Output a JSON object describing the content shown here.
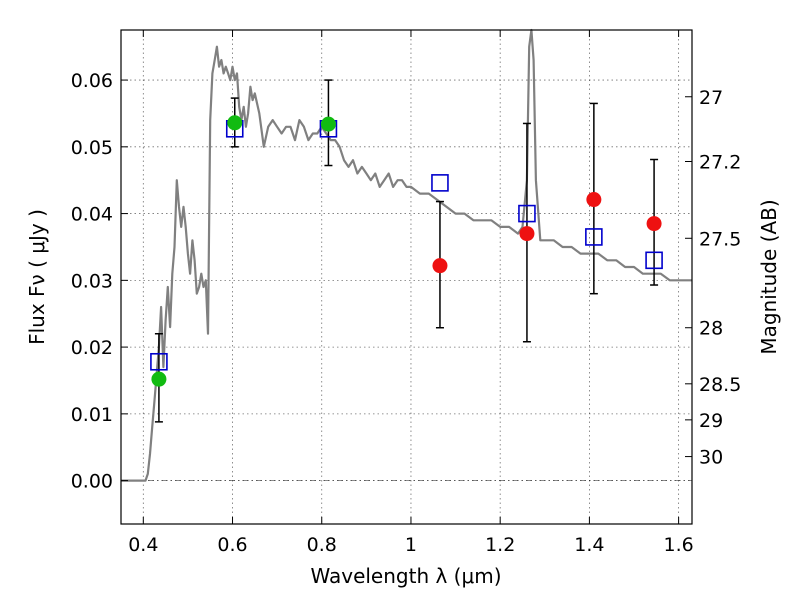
{
  "chart_data": {
    "type": "scatter",
    "title": "",
    "xlabel": "Wavelength  λ (μm)",
    "ylabel": "Flux  Fν  ( μJy )",
    "ylabel_right": "Magnitude (AB)",
    "xlim": [
      0.35,
      1.63
    ],
    "ylim": [
      -0.0065,
      0.0675
    ],
    "grid": true,
    "x_ticks": [
      0.4,
      0.6,
      0.8,
      1.0,
      1.2,
      1.4,
      1.6
    ],
    "x_tick_labels": [
      "0.4",
      "0.6",
      "0.8",
      "1",
      "1.2",
      "1.4",
      "1.6"
    ],
    "y_ticks": [
      0.0,
      0.01,
      0.02,
      0.03,
      0.04,
      0.05,
      0.06
    ],
    "y_tick_labels": [
      "0.00",
      "0.01",
      "0.02",
      "0.03",
      "0.04",
      "0.05",
      "0.06"
    ],
    "right_ticks": [
      {
        "label": "27",
        "flux": 0.0575
      },
      {
        "label": "27.2",
        "flux": 0.0478
      },
      {
        "label": "27.5",
        "flux": 0.0363
      },
      {
        "label": "28",
        "flux": 0.0229
      },
      {
        "label": "28.5",
        "flux": 0.0145
      },
      {
        "label": "29",
        "flux": 0.0091
      },
      {
        "label": "30",
        "flux": 0.0036
      }
    ],
    "model_spectrum": {
      "color": "#808080",
      "x": [
        0.35,
        0.4,
        0.405,
        0.41,
        0.415,
        0.42,
        0.425,
        0.43,
        0.435,
        0.44,
        0.445,
        0.45,
        0.455,
        0.46,
        0.465,
        0.47,
        0.475,
        0.48,
        0.485,
        0.49,
        0.495,
        0.5,
        0.505,
        0.51,
        0.515,
        0.52,
        0.525,
        0.53,
        0.535,
        0.54,
        0.545,
        0.55,
        0.555,
        0.56,
        0.565,
        0.57,
        0.575,
        0.58,
        0.585,
        0.59,
        0.595,
        0.6,
        0.605,
        0.61,
        0.615,
        0.62,
        0.625,
        0.63,
        0.635,
        0.64,
        0.645,
        0.65,
        0.66,
        0.67,
        0.68,
        0.69,
        0.7,
        0.71,
        0.72,
        0.73,
        0.74,
        0.75,
        0.76,
        0.77,
        0.78,
        0.79,
        0.8,
        0.81,
        0.82,
        0.83,
        0.84,
        0.85,
        0.86,
        0.87,
        0.88,
        0.89,
        0.9,
        0.91,
        0.92,
        0.93,
        0.94,
        0.95,
        0.96,
        0.97,
        0.98,
        0.99,
        1.0,
        1.02,
        1.04,
        1.06,
        1.08,
        1.1,
        1.12,
        1.14,
        1.16,
        1.18,
        1.2,
        1.22,
        1.24,
        1.25,
        1.26,
        1.265,
        1.27,
        1.275,
        1.28,
        1.29,
        1.3,
        1.32,
        1.34,
        1.36,
        1.38,
        1.4,
        1.42,
        1.44,
        1.46,
        1.48,
        1.5,
        1.52,
        1.54,
        1.56,
        1.58,
        1.6,
        1.63
      ],
      "y": [
        0.0,
        0.0,
        0.0,
        0.001,
        0.004,
        0.008,
        0.012,
        0.016,
        0.02,
        0.026,
        0.017,
        0.024,
        0.029,
        0.023,
        0.031,
        0.035,
        0.045,
        0.041,
        0.038,
        0.041,
        0.038,
        0.034,
        0.031,
        0.036,
        0.033,
        0.028,
        0.029,
        0.031,
        0.029,
        0.03,
        0.022,
        0.054,
        0.061,
        0.063,
        0.065,
        0.062,
        0.063,
        0.061,
        0.062,
        0.061,
        0.06,
        0.062,
        0.06,
        0.061,
        0.056,
        0.054,
        0.056,
        0.053,
        0.055,
        0.059,
        0.057,
        0.058,
        0.055,
        0.05,
        0.053,
        0.054,
        0.053,
        0.052,
        0.053,
        0.053,
        0.051,
        0.054,
        0.053,
        0.051,
        0.052,
        0.052,
        0.053,
        0.052,
        0.051,
        0.051,
        0.05,
        0.048,
        0.047,
        0.048,
        0.046,
        0.047,
        0.046,
        0.045,
        0.046,
        0.044,
        0.045,
        0.046,
        0.044,
        0.045,
        0.045,
        0.044,
        0.044,
        0.043,
        0.043,
        0.042,
        0.041,
        0.04,
        0.04,
        0.039,
        0.039,
        0.039,
        0.038,
        0.038,
        0.037,
        0.038,
        0.045,
        0.065,
        0.068,
        0.063,
        0.045,
        0.036,
        0.036,
        0.036,
        0.035,
        0.035,
        0.034,
        0.034,
        0.034,
        0.033,
        0.033,
        0.032,
        0.032,
        0.031,
        0.031,
        0.031,
        0.03,
        0.03,
        0.03
      ]
    },
    "series": [
      {
        "marker": "open-square",
        "color": "#0000cc",
        "points": [
          {
            "x": 0.435,
            "y": 0.0178
          },
          {
            "x": 0.605,
            "y": 0.0527
          },
          {
            "x": 0.815,
            "y": 0.0527
          },
          {
            "x": 1.065,
            "y": 0.0446
          },
          {
            "x": 1.26,
            "y": 0.04
          },
          {
            "x": 1.41,
            "y": 0.0365
          },
          {
            "x": 1.545,
            "y": 0.033
          }
        ]
      },
      {
        "marker": "filled-circle",
        "color": "#11bb11",
        "points": [
          {
            "x": 0.435,
            "y": 0.0152,
            "err_low": 0.0088,
            "err_high": 0.022
          },
          {
            "x": 0.605,
            "y": 0.0536,
            "err_low": 0.05,
            "err_high": 0.0573
          },
          {
            "x": 0.815,
            "y": 0.0534,
            "err_low": 0.0472,
            "err_high": 0.06
          }
        ]
      },
      {
        "marker": "filled-circle",
        "color": "#ee1111",
        "points": [
          {
            "x": 1.065,
            "y": 0.0322,
            "err_low": 0.0229,
            "err_high": 0.0418
          },
          {
            "x": 1.26,
            "y": 0.037,
            "err_low": 0.0208,
            "err_high": 0.0535
          },
          {
            "x": 1.41,
            "y": 0.0421,
            "err_low": 0.028,
            "err_high": 0.0565
          },
          {
            "x": 1.545,
            "y": 0.0385,
            "err_low": 0.0293,
            "err_high": 0.0481
          }
        ]
      }
    ]
  }
}
